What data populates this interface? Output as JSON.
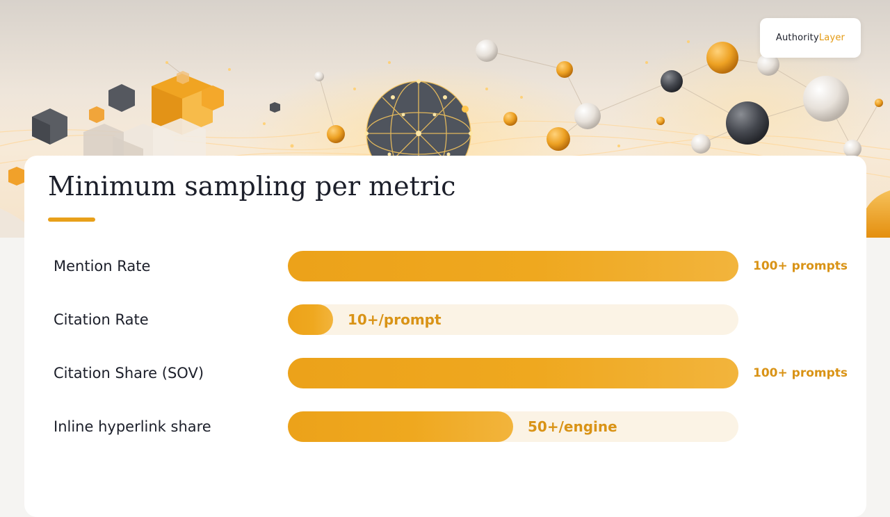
{
  "brand": {
    "part1": "Authority",
    "part2": "Layer"
  },
  "colors": {
    "accent": "#e8a01a",
    "bar_fill": "#eca21a",
    "bar_track": "#fbf3e5",
    "value_text": "#d99316",
    "text_dark": "#1c1f2a",
    "brand_highlight": "#e49a12"
  },
  "title": "Minimum sampling per metric",
  "chart_data": {
    "type": "bar",
    "orientation": "horizontal",
    "categories": [
      "Mention Rate",
      "Citation Rate",
      "Citation Share (SOV)",
      "Inline hyperlink share"
    ],
    "values": [
      100,
      10,
      100,
      50
    ],
    "value_labels": [
      "100+ prompts",
      "10+/prompt",
      "100+ prompts",
      "50+/engine"
    ],
    "xlim": [
      0,
      100
    ],
    "grid": false,
    "legend": "none"
  }
}
